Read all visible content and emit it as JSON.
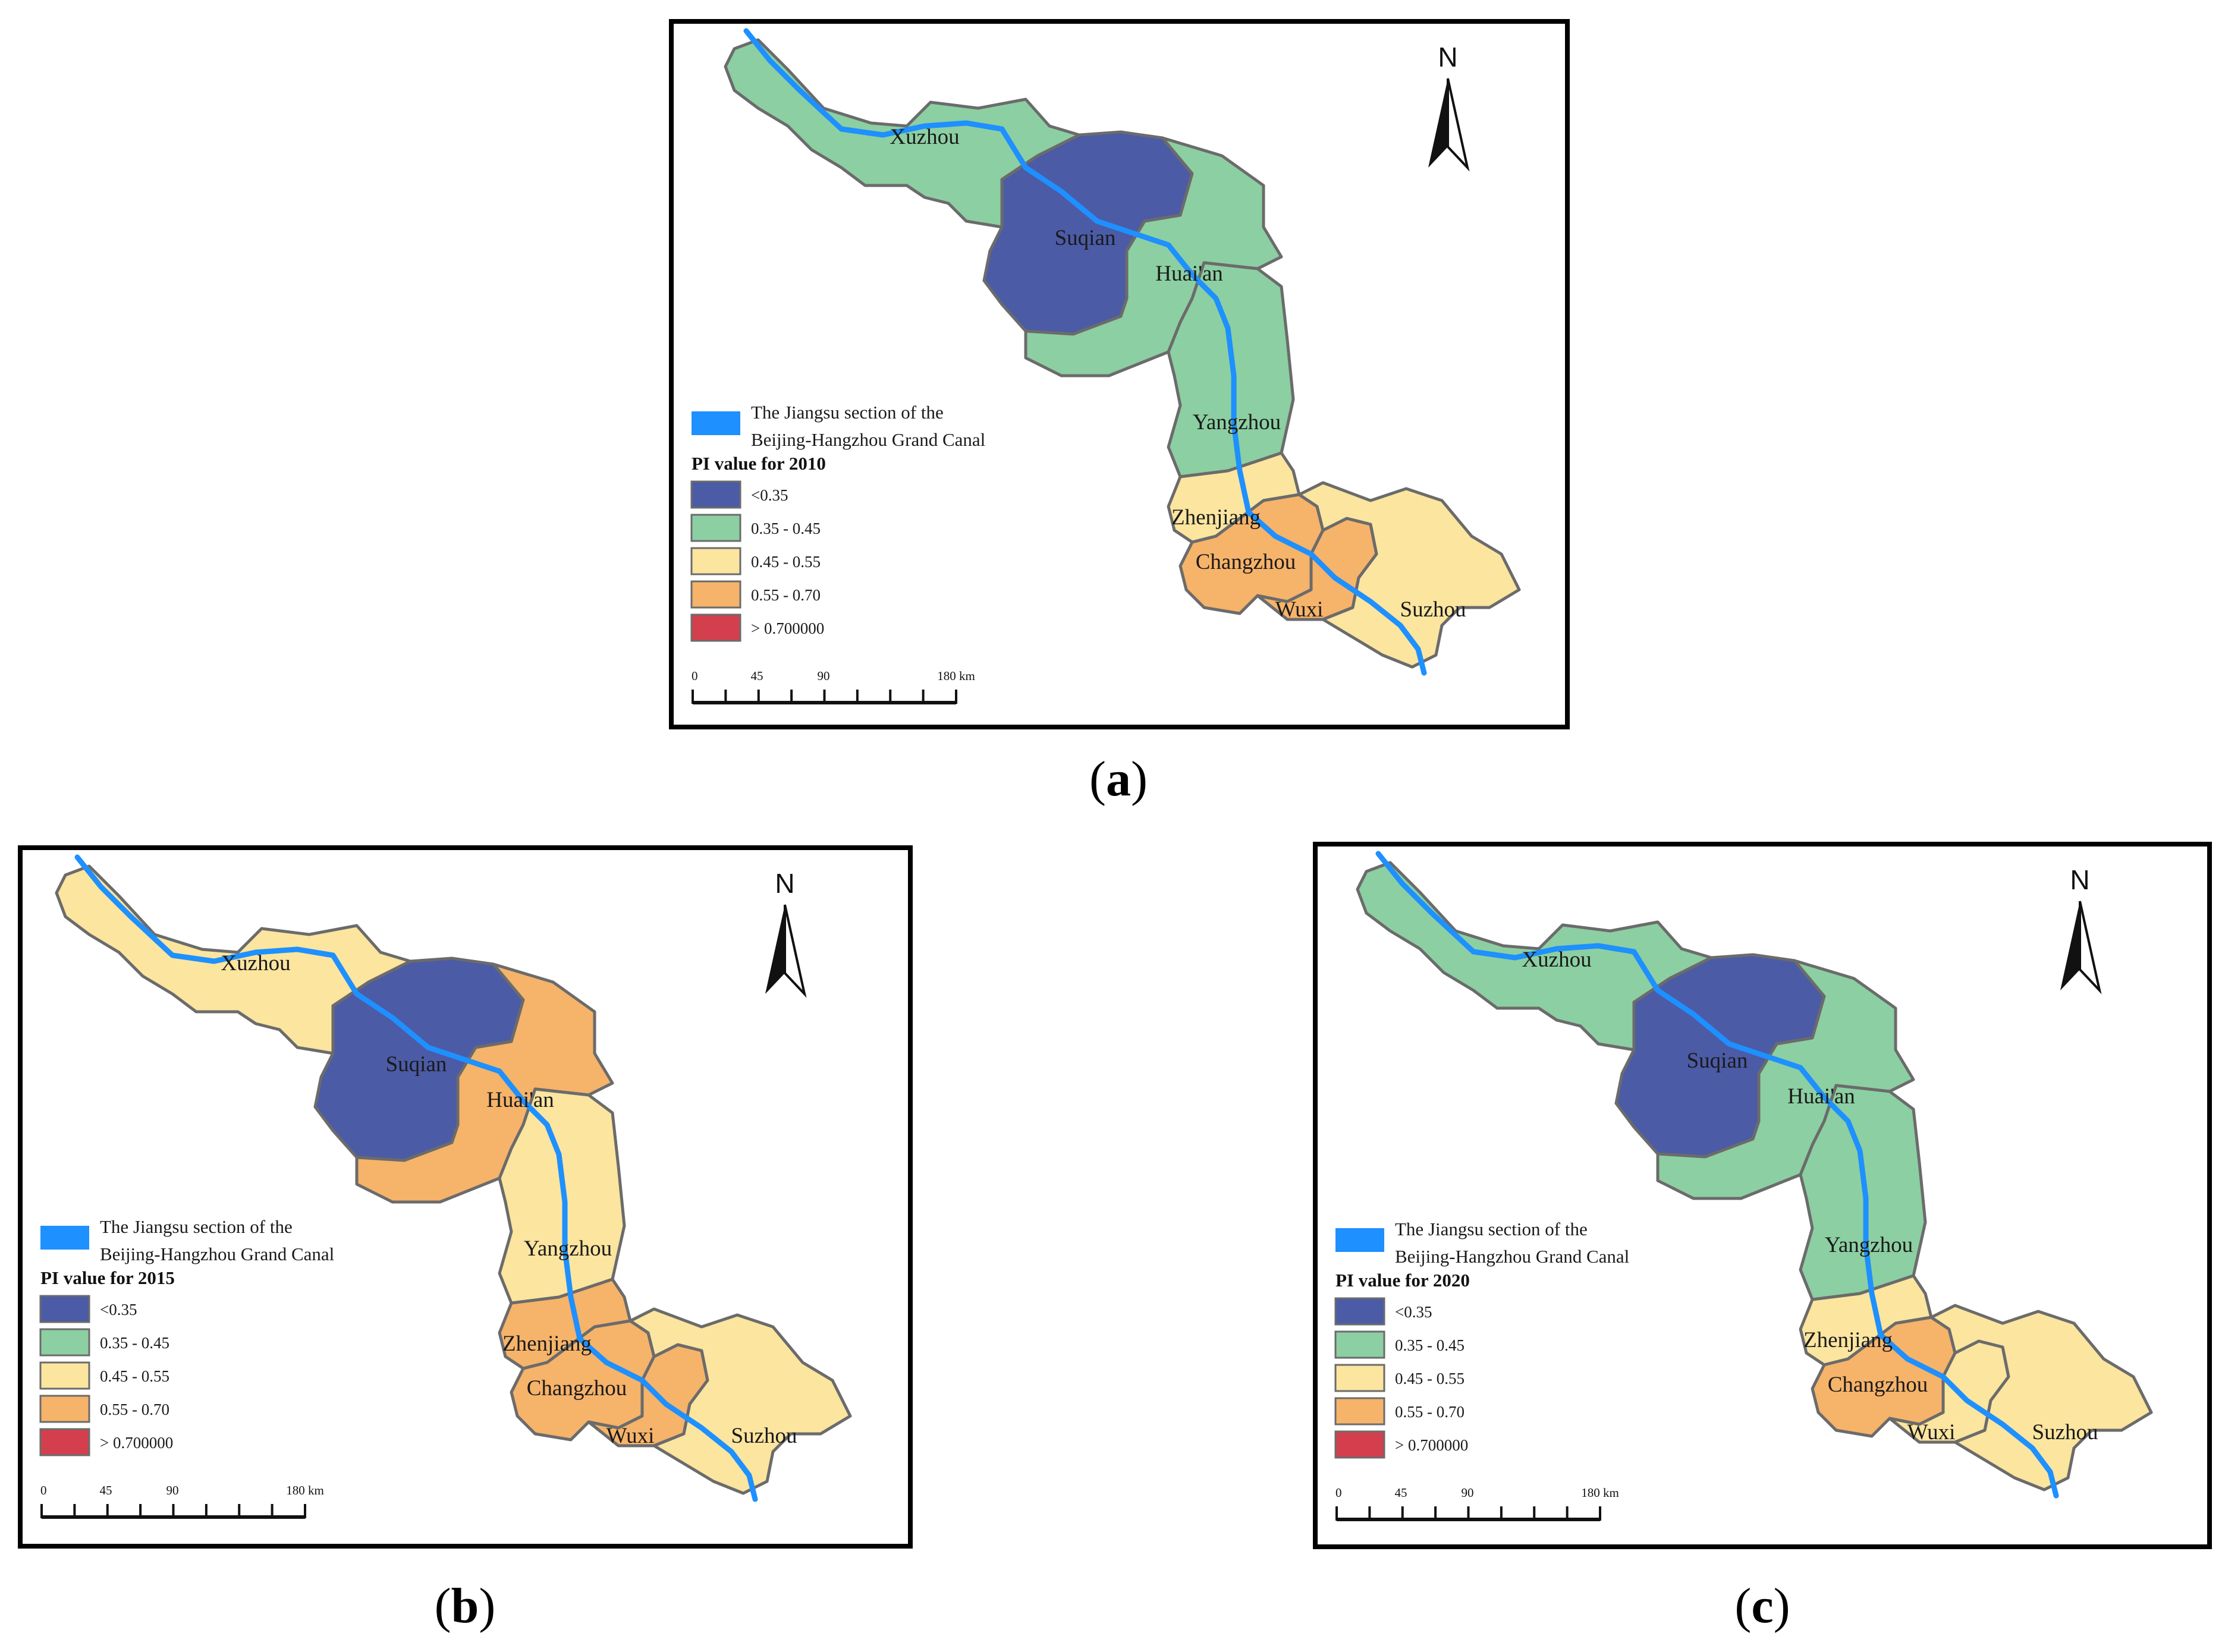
{
  "colors": {
    "lt035": "#4b5ba6",
    "c035_045": "#8ccfa2",
    "c045_055": "#fbe59f",
    "c055_070": "#f6b36a",
    "gt070": "#d43f4e",
    "canal": "#1e90ff",
    "boundary": "#6b6b6b",
    "frame": "#000000"
  },
  "legend": {
    "canal_label_line1": "The Jiangsu section of the",
    "canal_label_line2": "Beijing-Hangzhou Grand Canal",
    "classes": [
      "<0.35",
      "0.35 - 0.45",
      "0.45 - 0.55",
      "0.55 - 0.70",
      "> 0.700000"
    ]
  },
  "scale_bar": {
    "ticks": [
      "0",
      "45",
      "90",
      "180 km"
    ]
  },
  "north_arrow": {
    "label": "N",
    "icon": "north-arrow-icon"
  },
  "city_names": [
    "Xuzhou",
    "Suqian",
    "Huai'an",
    "Yangzhou",
    "Zhenjiang",
    "Changzhou",
    "Wuxi",
    "Suzhou"
  ],
  "panels": [
    {
      "id": "a",
      "caption_letter": "a",
      "legend_title": "PI value for 2010",
      "classes": {
        "Xuzhou": "0.35 - 0.45",
        "Suqian": "<0.35",
        "Huai'an": "0.35 - 0.45",
        "Yangzhou": "0.35 - 0.45",
        "Zhenjiang": "0.45 - 0.55",
        "Changzhou": "0.55 - 0.70",
        "Wuxi": "0.55 - 0.70",
        "Suzhou": "0.45 - 0.55"
      }
    },
    {
      "id": "b",
      "caption_letter": "b",
      "legend_title": "PI value for 2015",
      "classes": {
        "Xuzhou": "0.45 - 0.55",
        "Suqian": "<0.35",
        "Huai'an": "0.55 - 0.70",
        "Yangzhou": "0.45 - 0.55",
        "Zhenjiang": "0.55 - 0.70",
        "Changzhou": "0.55 - 0.70",
        "Wuxi": "0.55 - 0.70",
        "Suzhou": "0.45 - 0.55"
      }
    },
    {
      "id": "c",
      "caption_letter": "c",
      "legend_title": "PI value for 2020",
      "classes": {
        "Xuzhou": "0.35 - 0.45",
        "Suqian": "<0.35",
        "Huai'an": "0.35 - 0.45",
        "Yangzhou": "0.35 - 0.45",
        "Zhenjiang": "0.45 - 0.55",
        "Changzhou": "0.55 - 0.70",
        "Wuxi": "0.45 - 0.55",
        "Suzhou": "0.45 - 0.55"
      }
    }
  ]
}
